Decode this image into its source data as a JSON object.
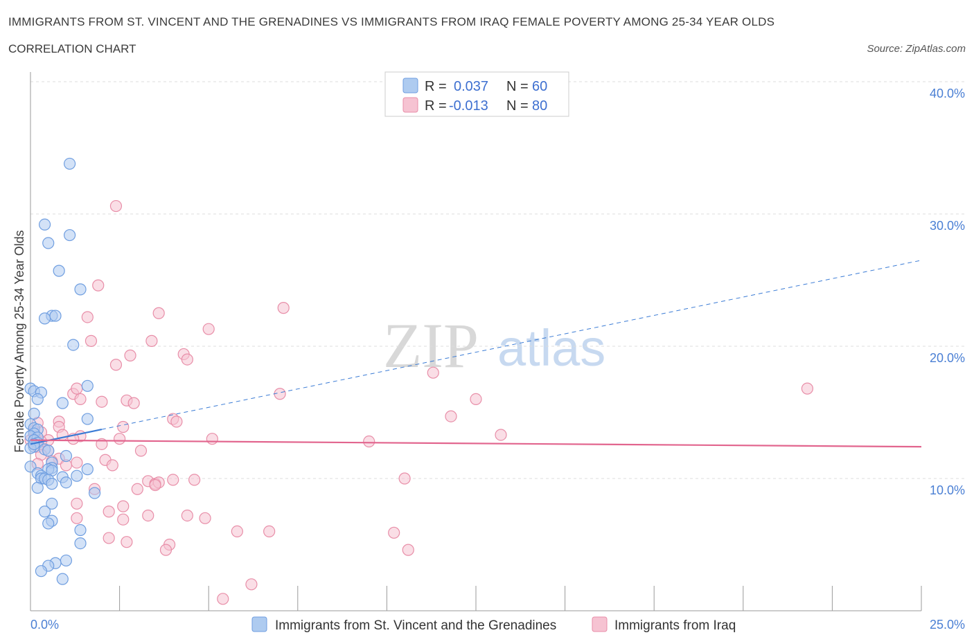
{
  "header": {
    "title": "IMMIGRANTS FROM ST. VINCENT AND THE GRENADINES VS IMMIGRANTS FROM IRAQ FEMALE POVERTY AMONG 25-34 YEAR OLDS",
    "subtitle": "CORRELATION CHART",
    "source": "Source: ZipAtlas.com"
  },
  "watermark": {
    "zip": "ZIP",
    "atlas": "atlas"
  },
  "legend": {
    "series1": {
      "r_label": "R =",
      "r_value": "0.037",
      "n_label": "N =",
      "n_value": "60"
    },
    "series2": {
      "r_label": "R =",
      "r_value": "-0.013",
      "n_label": "N =",
      "n_value": "80"
    }
  },
  "colors": {
    "blue_fill": "#aecbf0",
    "blue_stroke": "#6f9ee0",
    "blue_line": "#3a7bd5",
    "pink_fill": "#f6c3d2",
    "pink_stroke": "#e88ea8",
    "pink_line": "#e2658e",
    "grid": "#dddddd",
    "tick_text": "#4a7fd4"
  },
  "chart_data": {
    "type": "scatter",
    "title": "IMMIGRANTS FROM ST. VINCENT AND THE GRENADINES VS IMMIGRANTS FROM IRAQ FEMALE POVERTY AMONG 25-34 YEAR OLDS",
    "xlabel": "",
    "ylabel": "Female Poverty Among 25-34 Year Olds",
    "xlim": [
      0,
      25
    ],
    "ylim": [
      0,
      40
    ],
    "x_tick_labels": [
      "0.0%",
      "25.0%"
    ],
    "y_ticks": [
      10,
      20,
      30,
      40
    ],
    "y_tick_labels": [
      "10.0%",
      "20.0%",
      "30.0%",
      "40.0%"
    ],
    "grid": true,
    "legend_position": "top-center",
    "series": [
      {
        "name": "Immigrants from St. Vincent and the Grenadines",
        "color": "blue",
        "r": 0.037,
        "n": 60,
        "trend": {
          "x0": 0.0,
          "y0": 12.6,
          "x1": 25.0,
          "y1": 26.5,
          "solid_until": 2.0
        },
        "points": [
          [
            1.1,
            33.8
          ],
          [
            0.4,
            29.2
          ],
          [
            1.1,
            28.4
          ],
          [
            0.5,
            27.8
          ],
          [
            0.8,
            25.7
          ],
          [
            1.4,
            24.3
          ],
          [
            0.6,
            22.3
          ],
          [
            0.4,
            22.1
          ],
          [
            0.7,
            22.3
          ],
          [
            1.2,
            20.1
          ],
          [
            1.6,
            17.0
          ],
          [
            0.0,
            16.8
          ],
          [
            0.1,
            16.6
          ],
          [
            0.3,
            16.5
          ],
          [
            0.2,
            16.0
          ],
          [
            0.9,
            15.7
          ],
          [
            0.1,
            14.9
          ],
          [
            1.6,
            14.5
          ],
          [
            0.0,
            14.1
          ],
          [
            0.1,
            13.8
          ],
          [
            0.2,
            13.7
          ],
          [
            0.1,
            13.4
          ],
          [
            0.0,
            13.2
          ],
          [
            0.2,
            13.1
          ],
          [
            0.1,
            12.9
          ],
          [
            0.2,
            12.7
          ],
          [
            0.1,
            12.4
          ],
          [
            0.0,
            12.3
          ],
          [
            0.4,
            12.2
          ],
          [
            0.5,
            12.1
          ],
          [
            1.0,
            11.7
          ],
          [
            0.6,
            11.2
          ],
          [
            0.0,
            10.9
          ],
          [
            0.6,
            10.8
          ],
          [
            0.5,
            10.7
          ],
          [
            0.6,
            10.6
          ],
          [
            1.6,
            10.7
          ],
          [
            0.2,
            10.4
          ],
          [
            0.3,
            10.2
          ],
          [
            0.3,
            10.0
          ],
          [
            0.9,
            10.1
          ],
          [
            1.3,
            10.2
          ],
          [
            0.4,
            10.0
          ],
          [
            0.5,
            9.9
          ],
          [
            1.0,
            9.7
          ],
          [
            0.6,
            9.6
          ],
          [
            0.2,
            9.3
          ],
          [
            1.8,
            8.9
          ],
          [
            0.6,
            8.1
          ],
          [
            0.4,
            7.5
          ],
          [
            0.6,
            6.8
          ],
          [
            0.5,
            6.6
          ],
          [
            1.4,
            6.1
          ],
          [
            1.4,
            5.1
          ],
          [
            1.0,
            3.8
          ],
          [
            0.7,
            3.6
          ],
          [
            0.5,
            3.4
          ],
          [
            0.3,
            3.0
          ],
          [
            0.9,
            2.4
          ],
          [
            0.1,
            12.6
          ]
        ]
      },
      {
        "name": "Immigrants from Iraq",
        "color": "pink",
        "r": -0.013,
        "n": 80,
        "trend": {
          "x0": 0.0,
          "y0": 12.9,
          "x1": 25.0,
          "y1": 12.4
        },
        "points": [
          [
            2.4,
            30.6
          ],
          [
            1.9,
            24.6
          ],
          [
            7.1,
            22.9
          ],
          [
            3.6,
            22.5
          ],
          [
            1.6,
            22.2
          ],
          [
            5.0,
            21.3
          ],
          [
            1.7,
            20.4
          ],
          [
            3.4,
            20.4
          ],
          [
            4.3,
            19.4
          ],
          [
            2.8,
            19.3
          ],
          [
            4.4,
            19.0
          ],
          [
            2.4,
            18.6
          ],
          [
            11.3,
            18.0
          ],
          [
            21.8,
            16.8
          ],
          [
            1.2,
            16.4
          ],
          [
            7.0,
            16.4
          ],
          [
            1.4,
            16.0
          ],
          [
            2.7,
            15.9
          ],
          [
            1.3,
            16.8
          ],
          [
            2.0,
            15.8
          ],
          [
            2.9,
            15.7
          ],
          [
            12.5,
            16.0
          ],
          [
            11.8,
            14.7
          ],
          [
            4.0,
            14.5
          ],
          [
            4.1,
            14.3
          ],
          [
            0.8,
            14.3
          ],
          [
            0.2,
            14.2
          ],
          [
            0.8,
            13.9
          ],
          [
            0.1,
            13.6
          ],
          [
            0.3,
            13.5
          ],
          [
            2.6,
            13.9
          ],
          [
            0.9,
            13.3
          ],
          [
            1.4,
            13.2
          ],
          [
            1.2,
            13.0
          ],
          [
            2.5,
            13.0
          ],
          [
            0.5,
            12.9
          ],
          [
            0.0,
            12.9
          ],
          [
            0.3,
            12.8
          ],
          [
            5.1,
            13.0
          ],
          [
            9.5,
            12.8
          ],
          [
            13.2,
            13.3
          ],
          [
            0.2,
            12.4
          ],
          [
            0.5,
            12.1
          ],
          [
            0.3,
            11.8
          ],
          [
            2.0,
            12.6
          ],
          [
            3.1,
            12.1
          ],
          [
            0.8,
            11.5
          ],
          [
            0.6,
            11.3
          ],
          [
            1.3,
            11.2
          ],
          [
            2.1,
            11.4
          ],
          [
            2.3,
            11.0
          ],
          [
            0.2,
            11.1
          ],
          [
            10.5,
            10.0
          ],
          [
            3.3,
            9.8
          ],
          [
            3.5,
            9.6
          ],
          [
            4.0,
            9.9
          ],
          [
            3.6,
            9.7
          ],
          [
            4.6,
            9.9
          ],
          [
            3.5,
            9.5
          ],
          [
            3.0,
            9.2
          ],
          [
            1.8,
            9.2
          ],
          [
            1.3,
            8.1
          ],
          [
            2.6,
            7.9
          ],
          [
            2.2,
            7.5
          ],
          [
            3.3,
            7.2
          ],
          [
            1.3,
            7.0
          ],
          [
            2.6,
            6.9
          ],
          [
            4.4,
            7.2
          ],
          [
            4.9,
            7.0
          ],
          [
            5.8,
            6.0
          ],
          [
            6.7,
            6.0
          ],
          [
            10.2,
            5.9
          ],
          [
            2.2,
            5.5
          ],
          [
            2.7,
            5.2
          ],
          [
            3.9,
            5.0
          ],
          [
            3.8,
            4.6
          ],
          [
            10.6,
            4.6
          ],
          [
            6.2,
            2.0
          ],
          [
            5.4,
            0.9
          ],
          [
            1.0,
            11.0
          ]
        ]
      }
    ]
  },
  "bottom_legend": {
    "item1": "Immigrants from St. Vincent and the Grenadines",
    "item2": "Immigrants from Iraq"
  }
}
